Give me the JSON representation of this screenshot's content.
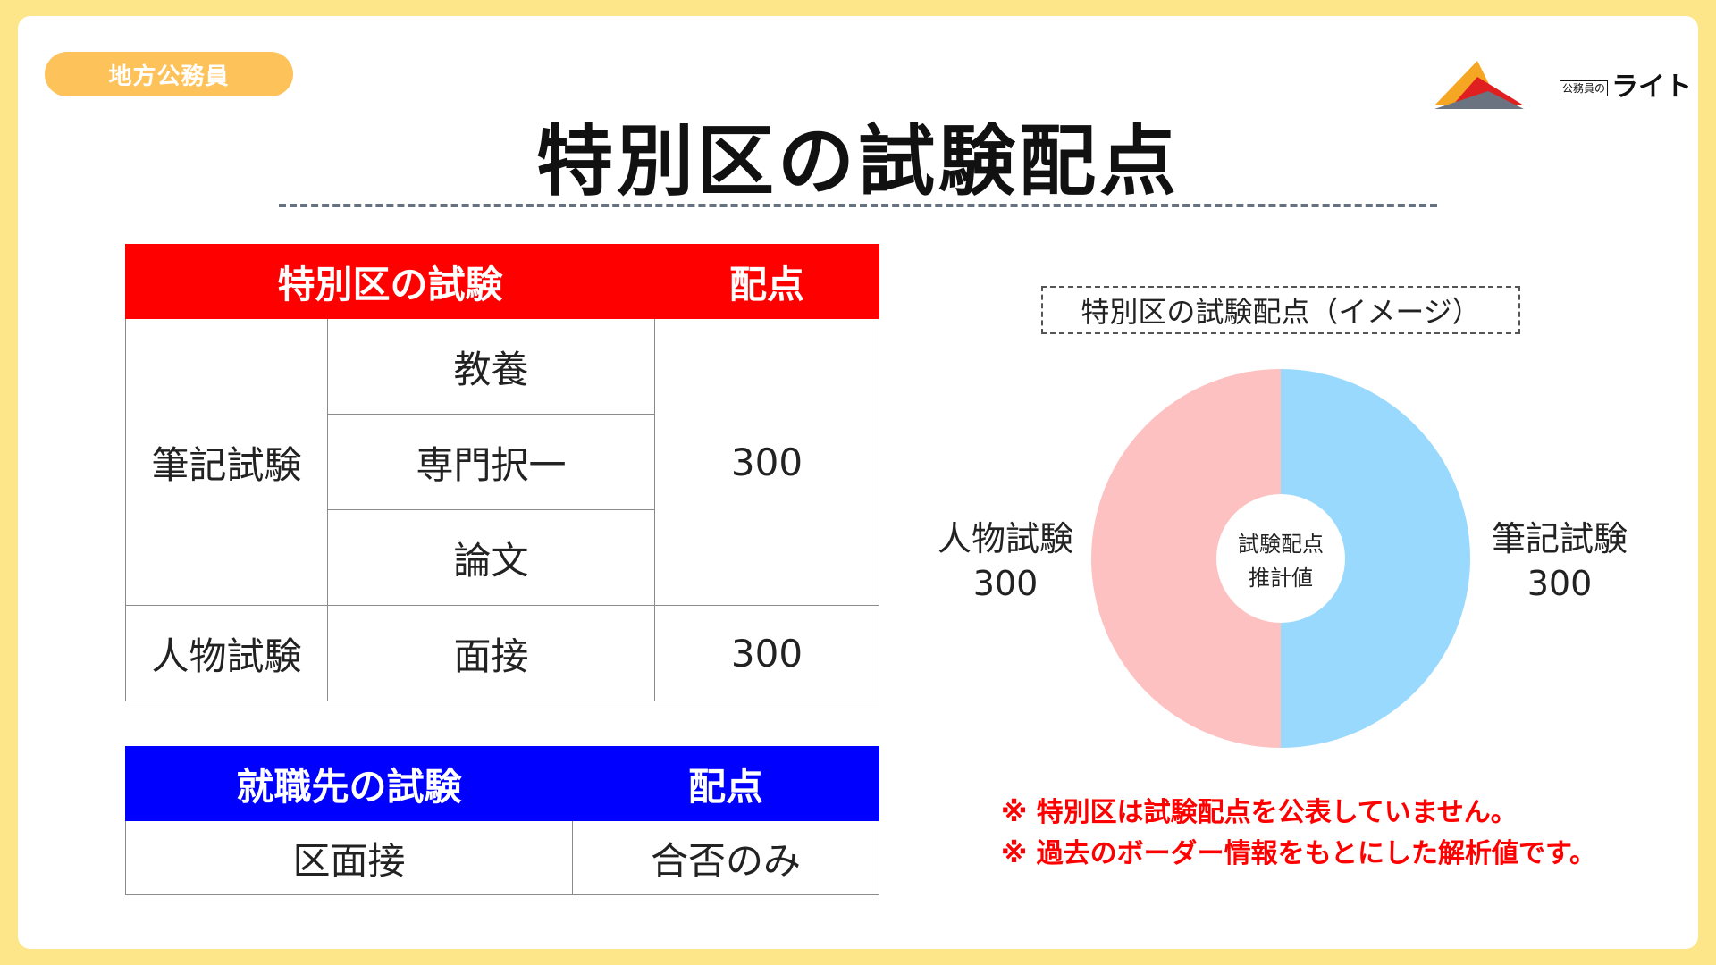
{
  "badge": "地方公務員",
  "logo": {
    "small": "公務員の",
    "text": "ライト"
  },
  "title": "特別区の試験配点",
  "table1": {
    "header": [
      "特別区の試験",
      "配点"
    ],
    "group1": {
      "label": "筆記試験",
      "items": [
        "教養",
        "専門択一",
        "論文"
      ],
      "score": "300"
    },
    "group2": {
      "label": "人物試験",
      "item": "面接",
      "score": "300"
    }
  },
  "table2": {
    "header": [
      "就職先の試験",
      "配点"
    ],
    "row": [
      "区面接",
      "合否のみ"
    ]
  },
  "chart_data": {
    "type": "pie",
    "title": "特別区の試験配点（イメージ）",
    "center_label": [
      "試験配点",
      "推計値"
    ],
    "slices": [
      {
        "name": "筆記試験",
        "value": 300,
        "value_label": "300",
        "color": "#99d9fd"
      },
      {
        "name": "人物試験",
        "value": 300,
        "value_label": "300",
        "color": "#fec1c1"
      }
    ]
  },
  "notes": [
    "※ 特別区は試験配点を公表していません。",
    "※ 過去のボーダー情報をもとにした解析値です。"
  ]
}
